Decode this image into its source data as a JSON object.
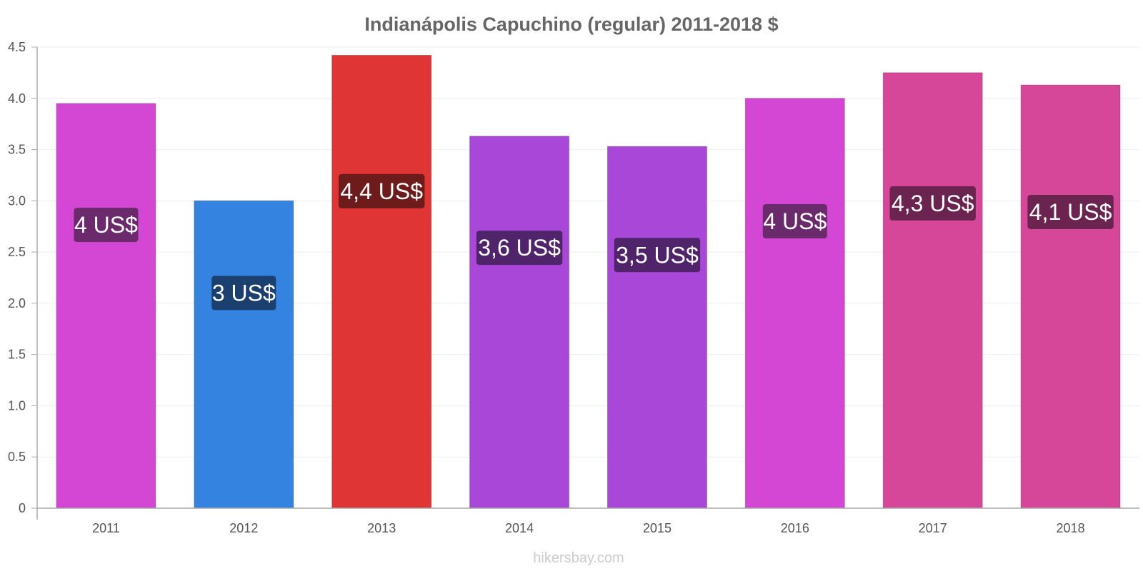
{
  "chart_data": {
    "type": "bar",
    "title": "Indianápolis Capuchino (regular) 2011-2018 $",
    "categories": [
      "2011",
      "2012",
      "2013",
      "2014",
      "2015",
      "2016",
      "2017",
      "2018"
    ],
    "values": [
      3.95,
      3.0,
      4.42,
      3.63,
      3.53,
      4.0,
      4.25,
      4.13
    ],
    "data_labels": [
      "4 US$",
      "3 US$",
      "4,4 US$",
      "3,6 US$",
      "3,5 US$",
      "4 US$",
      "4,3 US$",
      "4,1 US$"
    ],
    "bar_colors": [
      "#d447d4",
      "#3583e0",
      "#e03535",
      "#a847d8",
      "#a847d8",
      "#d447d4",
      "#d64799",
      "#d64799"
    ],
    "label_colors": [
      "#6b2a6b",
      "#1b3f6e",
      "#6e1b1b",
      "#50246b",
      "#50246b",
      "#6b2a6b",
      "#6b2450",
      "#6b2450"
    ],
    "ylim": [
      0,
      4.5
    ],
    "yticks": [
      "0",
      "0.5",
      "1.0",
      "1.5",
      "2.0",
      "2.5",
      "3.0",
      "3.5",
      "4.0",
      "4.5"
    ],
    "ytick_values": [
      0,
      0.5,
      1.0,
      1.5,
      2.0,
      2.5,
      3.0,
      3.5,
      4.0,
      4.5
    ],
    "grid": true,
    "xlabel": "",
    "ylabel": ""
  },
  "watermark": "hikersbay.com"
}
